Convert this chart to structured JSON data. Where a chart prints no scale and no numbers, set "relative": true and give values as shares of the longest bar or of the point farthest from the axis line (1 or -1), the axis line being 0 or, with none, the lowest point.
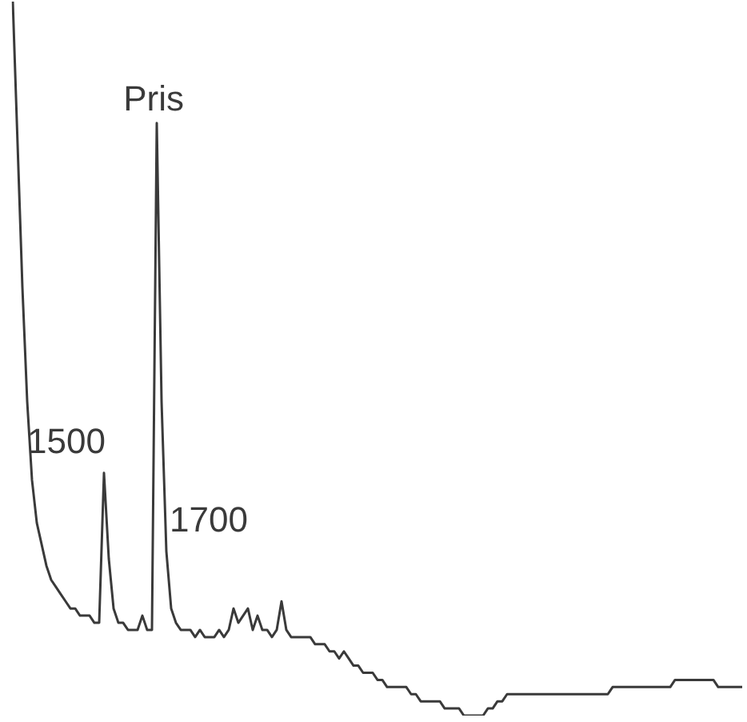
{
  "chart_data": {
    "type": "line",
    "relative": true,
    "color": "#3a3a3a",
    "marker": "none",
    "legend": false,
    "tick_labels": false,
    "categories": [
      null,
      null,
      null,
      null,
      null,
      null,
      null,
      null,
      null,
      null,
      null,
      null,
      null,
      null,
      null,
      null,
      null,
      null,
      null,
      null,
      null,
      null,
      null,
      null,
      null,
      null,
      null,
      null,
      null,
      null,
      null,
      null,
      null,
      null,
      null,
      null,
      null,
      null,
      null,
      null,
      null,
      null,
      null,
      null,
      null,
      null,
      null,
      null,
      null,
      null,
      null,
      null,
      null,
      null,
      null,
      null,
      null,
      null,
      null,
      null,
      null,
      null,
      null,
      null,
      null,
      null,
      null,
      null,
      null,
      null,
      null,
      null,
      null,
      null,
      null,
      null,
      null,
      null,
      null,
      null,
      null,
      null,
      null,
      null,
      null,
      null,
      null,
      null,
      null,
      null,
      null,
      null,
      null,
      null,
      null,
      null,
      null,
      null,
      null,
      null,
      null,
      null,
      null,
      null,
      null,
      null,
      null,
      null,
      null,
      null,
      null,
      null,
      null,
      null,
      null,
      null,
      null,
      null,
      null,
      null,
      null,
      null,
      null,
      null,
      null,
      null,
      null,
      null,
      null,
      null,
      null,
      null,
      null,
      null,
      null,
      null,
      null,
      null,
      null,
      null,
      null,
      null,
      null,
      null,
      null,
      null,
      null,
      null,
      null,
      null,
      null,
      null,
      null
    ],
    "values": [
      1.0,
      0.8,
      0.6,
      0.44,
      0.33,
      0.27,
      0.24,
      0.21,
      0.19,
      0.18,
      0.17,
      0.16,
      0.15,
      0.15,
      0.14,
      0.14,
      0.14,
      0.13,
      0.13,
      0.34,
      0.22,
      0.15,
      0.13,
      0.13,
      0.12,
      0.12,
      0.12,
      0.14,
      0.12,
      0.12,
      0.83,
      0.44,
      0.23,
      0.15,
      0.13,
      0.12,
      0.12,
      0.12,
      0.11,
      0.12,
      0.11,
      0.11,
      0.11,
      0.12,
      0.11,
      0.12,
      0.15,
      0.13,
      0.14,
      0.15,
      0.12,
      0.14,
      0.12,
      0.12,
      0.11,
      0.12,
      0.16,
      0.12,
      0.11,
      0.11,
      0.11,
      0.11,
      0.11,
      0.1,
      0.1,
      0.1,
      0.09,
      0.09,
      0.08,
      0.09,
      0.08,
      0.07,
      0.07,
      0.06,
      0.06,
      0.06,
      0.05,
      0.05,
      0.04,
      0.04,
      0.04,
      0.04,
      0.04,
      0.03,
      0.03,
      0.02,
      0.02,
      0.02,
      0.02,
      0.02,
      0.01,
      0.01,
      0.01,
      0.01,
      0.0,
      0.0,
      0.0,
      0.0,
      0.0,
      0.01,
      0.01,
      0.02,
      0.02,
      0.03,
      0.03,
      0.03,
      0.03,
      0.03,
      0.03,
      0.03,
      0.03,
      0.03,
      0.03,
      0.03,
      0.03,
      0.03,
      0.03,
      0.03,
      0.03,
      0.03,
      0.03,
      0.03,
      0.03,
      0.03,
      0.03,
      0.04,
      0.04,
      0.04,
      0.04,
      0.04,
      0.04,
      0.04,
      0.04,
      0.04,
      0.04,
      0.04,
      0.04,
      0.04,
      0.05,
      0.05,
      0.05,
      0.05,
      0.05,
      0.05,
      0.05,
      0.05,
      0.05,
      0.04,
      0.04,
      0.04,
      0.04,
      0.04,
      0.04
    ],
    "annotations": [
      "1500",
      {
        "text": "Pris",
        "y": 0.83
      },
      "1700"
    ]
  }
}
